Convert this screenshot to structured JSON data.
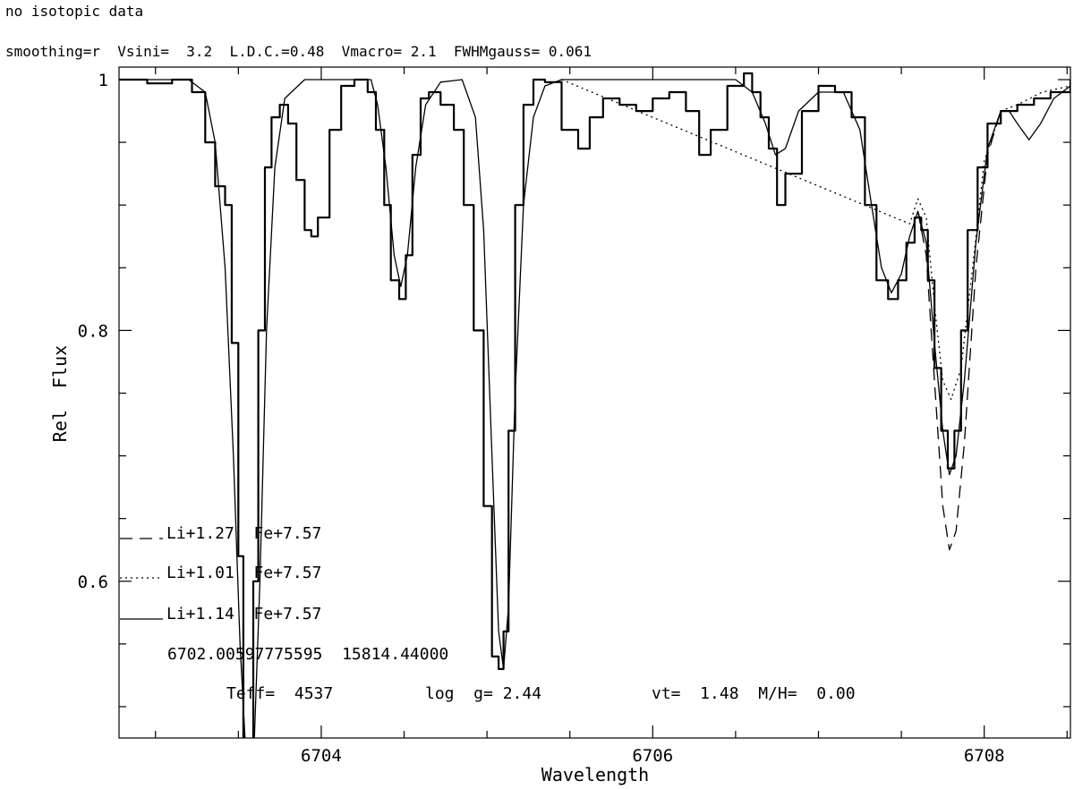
{
  "header": {
    "line1": "no isotopic data",
    "line2": "smoothing=r  Vsini=  3.2  L.D.C.=0.48  Vmacro= 2.1  FWHMgauss= 0.061"
  },
  "chart_data": {
    "type": "line",
    "xlabel": "Wavelength",
    "ylabel": "Rel  Flux",
    "xlim": [
      6702.78,
      6708.52
    ],
    "ylim": [
      0.475,
      1.01
    ],
    "xticks": [
      6704,
      6706,
      6708
    ],
    "yticks": [
      0.6,
      0.8,
      1
    ],
    "ytick_labels": [
      "0.6",
      "0.8",
      "1"
    ],
    "grid": false,
    "legend": [
      {
        "style": "dashed",
        "label": "Li+1.27  Fe+7.57"
      },
      {
        "style": "dotted",
        "label": "Li+1.01  Fe+7.57"
      },
      {
        "style": "solid",
        "label": "Li+1.14  Fe+7.57"
      }
    ],
    "annotations": {
      "star_info": "6702.00597775595  15814.44000",
      "teff": "Teff=  4537",
      "logg": "log  g= 2.44",
      "vt": "vt=  1.48  M/H=  0.00"
    },
    "series": [
      {
        "style": "steps",
        "x": [
          6702.78,
          6702.95,
          6703.1,
          6703.22,
          6703.3,
          6703.36,
          6703.42,
          6703.46,
          6703.5,
          6703.53,
          6703.56,
          6703.59,
          6703.62,
          6703.66,
          6703.7,
          6703.75,
          6703.8,
          6703.85,
          6703.9,
          6703.94,
          6703.98,
          6704.05,
          6704.12,
          6704.2,
          6704.28,
          6704.33,
          6704.38,
          6704.42,
          6704.47,
          6704.51,
          6704.55,
          6704.6,
          6704.65,
          6704.72,
          6704.8,
          6704.86,
          6704.92,
          6704.98,
          6705.03,
          6705.07,
          6705.1,
          6705.13,
          6705.17,
          6705.22,
          6705.28,
          6705.35,
          6705.45,
          6705.55,
          6705.62,
          6705.7,
          6705.8,
          6705.9,
          6706.0,
          6706.1,
          6706.2,
          6706.28,
          6706.35,
          6706.45,
          6706.55,
          6706.6,
          6706.65,
          6706.7,
          6706.75,
          6706.8,
          6706.9,
          6707.0,
          6707.1,
          6707.2,
          6707.28,
          6707.35,
          6707.42,
          6707.48,
          6707.53,
          6707.58,
          6707.62,
          6707.66,
          6707.7,
          6707.74,
          6707.78,
          6707.82,
          6707.86,
          6707.9,
          6707.96,
          6708.02,
          6708.1,
          6708.2,
          6708.3,
          6708.4,
          6708.52
        ],
        "y": [
          1.0,
          0.997,
          1.0,
          0.99,
          0.95,
          0.915,
          0.9,
          0.79,
          0.62,
          0.46,
          0.45,
          0.6,
          0.8,
          0.93,
          0.97,
          0.98,
          0.965,
          0.92,
          0.88,
          0.875,
          0.89,
          0.96,
          0.995,
          1.0,
          0.99,
          0.96,
          0.9,
          0.84,
          0.825,
          0.86,
          0.94,
          0.985,
          0.99,
          0.98,
          0.96,
          0.9,
          0.8,
          0.66,
          0.54,
          0.53,
          0.56,
          0.72,
          0.9,
          0.98,
          1.0,
          0.998,
          0.96,
          0.945,
          0.97,
          0.985,
          0.98,
          0.975,
          0.985,
          0.99,
          0.975,
          0.94,
          0.96,
          0.995,
          1.005,
          0.99,
          0.97,
          0.945,
          0.9,
          0.925,
          0.975,
          0.995,
          0.99,
          0.97,
          0.9,
          0.84,
          0.825,
          0.84,
          0.87,
          0.89,
          0.88,
          0.84,
          0.77,
          0.72,
          0.69,
          0.72,
          0.8,
          0.88,
          0.93,
          0.965,
          0.975,
          0.98,
          0.985,
          0.99,
          1.0
        ]
      },
      {
        "name": "Li+1.14  Fe+7.57",
        "style": "solid",
        "x": [
          6702.78,
          6703.2,
          6703.3,
          6703.36,
          6703.42,
          6703.47,
          6703.51,
          6703.55,
          6703.59,
          6703.63,
          6703.67,
          6703.72,
          6703.78,
          6703.9,
          6704.3,
          6704.34,
          6704.39,
          6704.44,
          6704.48,
          6704.52,
          6704.57,
          6704.63,
          6704.72,
          6704.85,
          6704.93,
          6704.98,
          6705.03,
          6705.07,
          6705.1,
          6705.13,
          6705.17,
          6705.22,
          6705.28,
          6705.35,
          6705.45,
          6706.5,
          6706.6,
          6706.68,
          6706.74,
          6706.8,
          6706.88,
          6707.0,
          6707.15,
          6707.25,
          6707.32,
          6707.38,
          6707.44,
          6707.5,
          6707.55,
          6707.6,
          6707.65,
          6707.7,
          6707.75,
          6707.79,
          6707.83,
          6707.88,
          6707.95,
          6708.02,
          6708.1,
          6708.15,
          6708.2,
          6708.27,
          6708.34,
          6708.42,
          6708.52
        ],
        "y": [
          1.0,
          1.0,
          0.99,
          0.95,
          0.85,
          0.7,
          0.55,
          0.45,
          0.45,
          0.6,
          0.8,
          0.93,
          0.985,
          1.0,
          1.0,
          0.98,
          0.93,
          0.86,
          0.835,
          0.86,
          0.93,
          0.98,
          0.998,
          1.0,
          0.97,
          0.88,
          0.7,
          0.56,
          0.53,
          0.58,
          0.75,
          0.9,
          0.97,
          0.995,
          1.0,
          1.0,
          0.99,
          0.965,
          0.94,
          0.945,
          0.975,
          0.99,
          0.99,
          0.96,
          0.9,
          0.85,
          0.83,
          0.845,
          0.875,
          0.895,
          0.87,
          0.79,
          0.72,
          0.685,
          0.7,
          0.76,
          0.87,
          0.945,
          0.975,
          0.975,
          0.965,
          0.952,
          0.965,
          0.985,
          0.995
        ]
      },
      {
        "name": "Li+1.01  Fe+7.57",
        "style": "dotted",
        "x": [
          6705.45,
          6707.55,
          6707.6,
          6707.65,
          6707.7,
          6707.75,
          6707.8,
          6707.86,
          6707.93,
          6708.0,
          6708.1,
          6708.2,
          6708.35,
          6708.52
        ],
        "y": [
          1.0,
          0.885,
          0.905,
          0.89,
          0.82,
          0.76,
          0.745,
          0.77,
          0.85,
          0.935,
          0.975,
          0.98,
          0.99,
          0.995
        ]
      },
      {
        "name": "Li+1.27  Fe+7.57",
        "style": "dashed",
        "x": [
          6707.6,
          6707.65,
          6707.7,
          6707.75,
          6707.79,
          6707.83,
          6707.88,
          6707.95,
          6708.02,
          6708.1
        ],
        "y": [
          0.895,
          0.86,
          0.76,
          0.66,
          0.625,
          0.64,
          0.71,
          0.85,
          0.94,
          0.975
        ]
      }
    ]
  }
}
